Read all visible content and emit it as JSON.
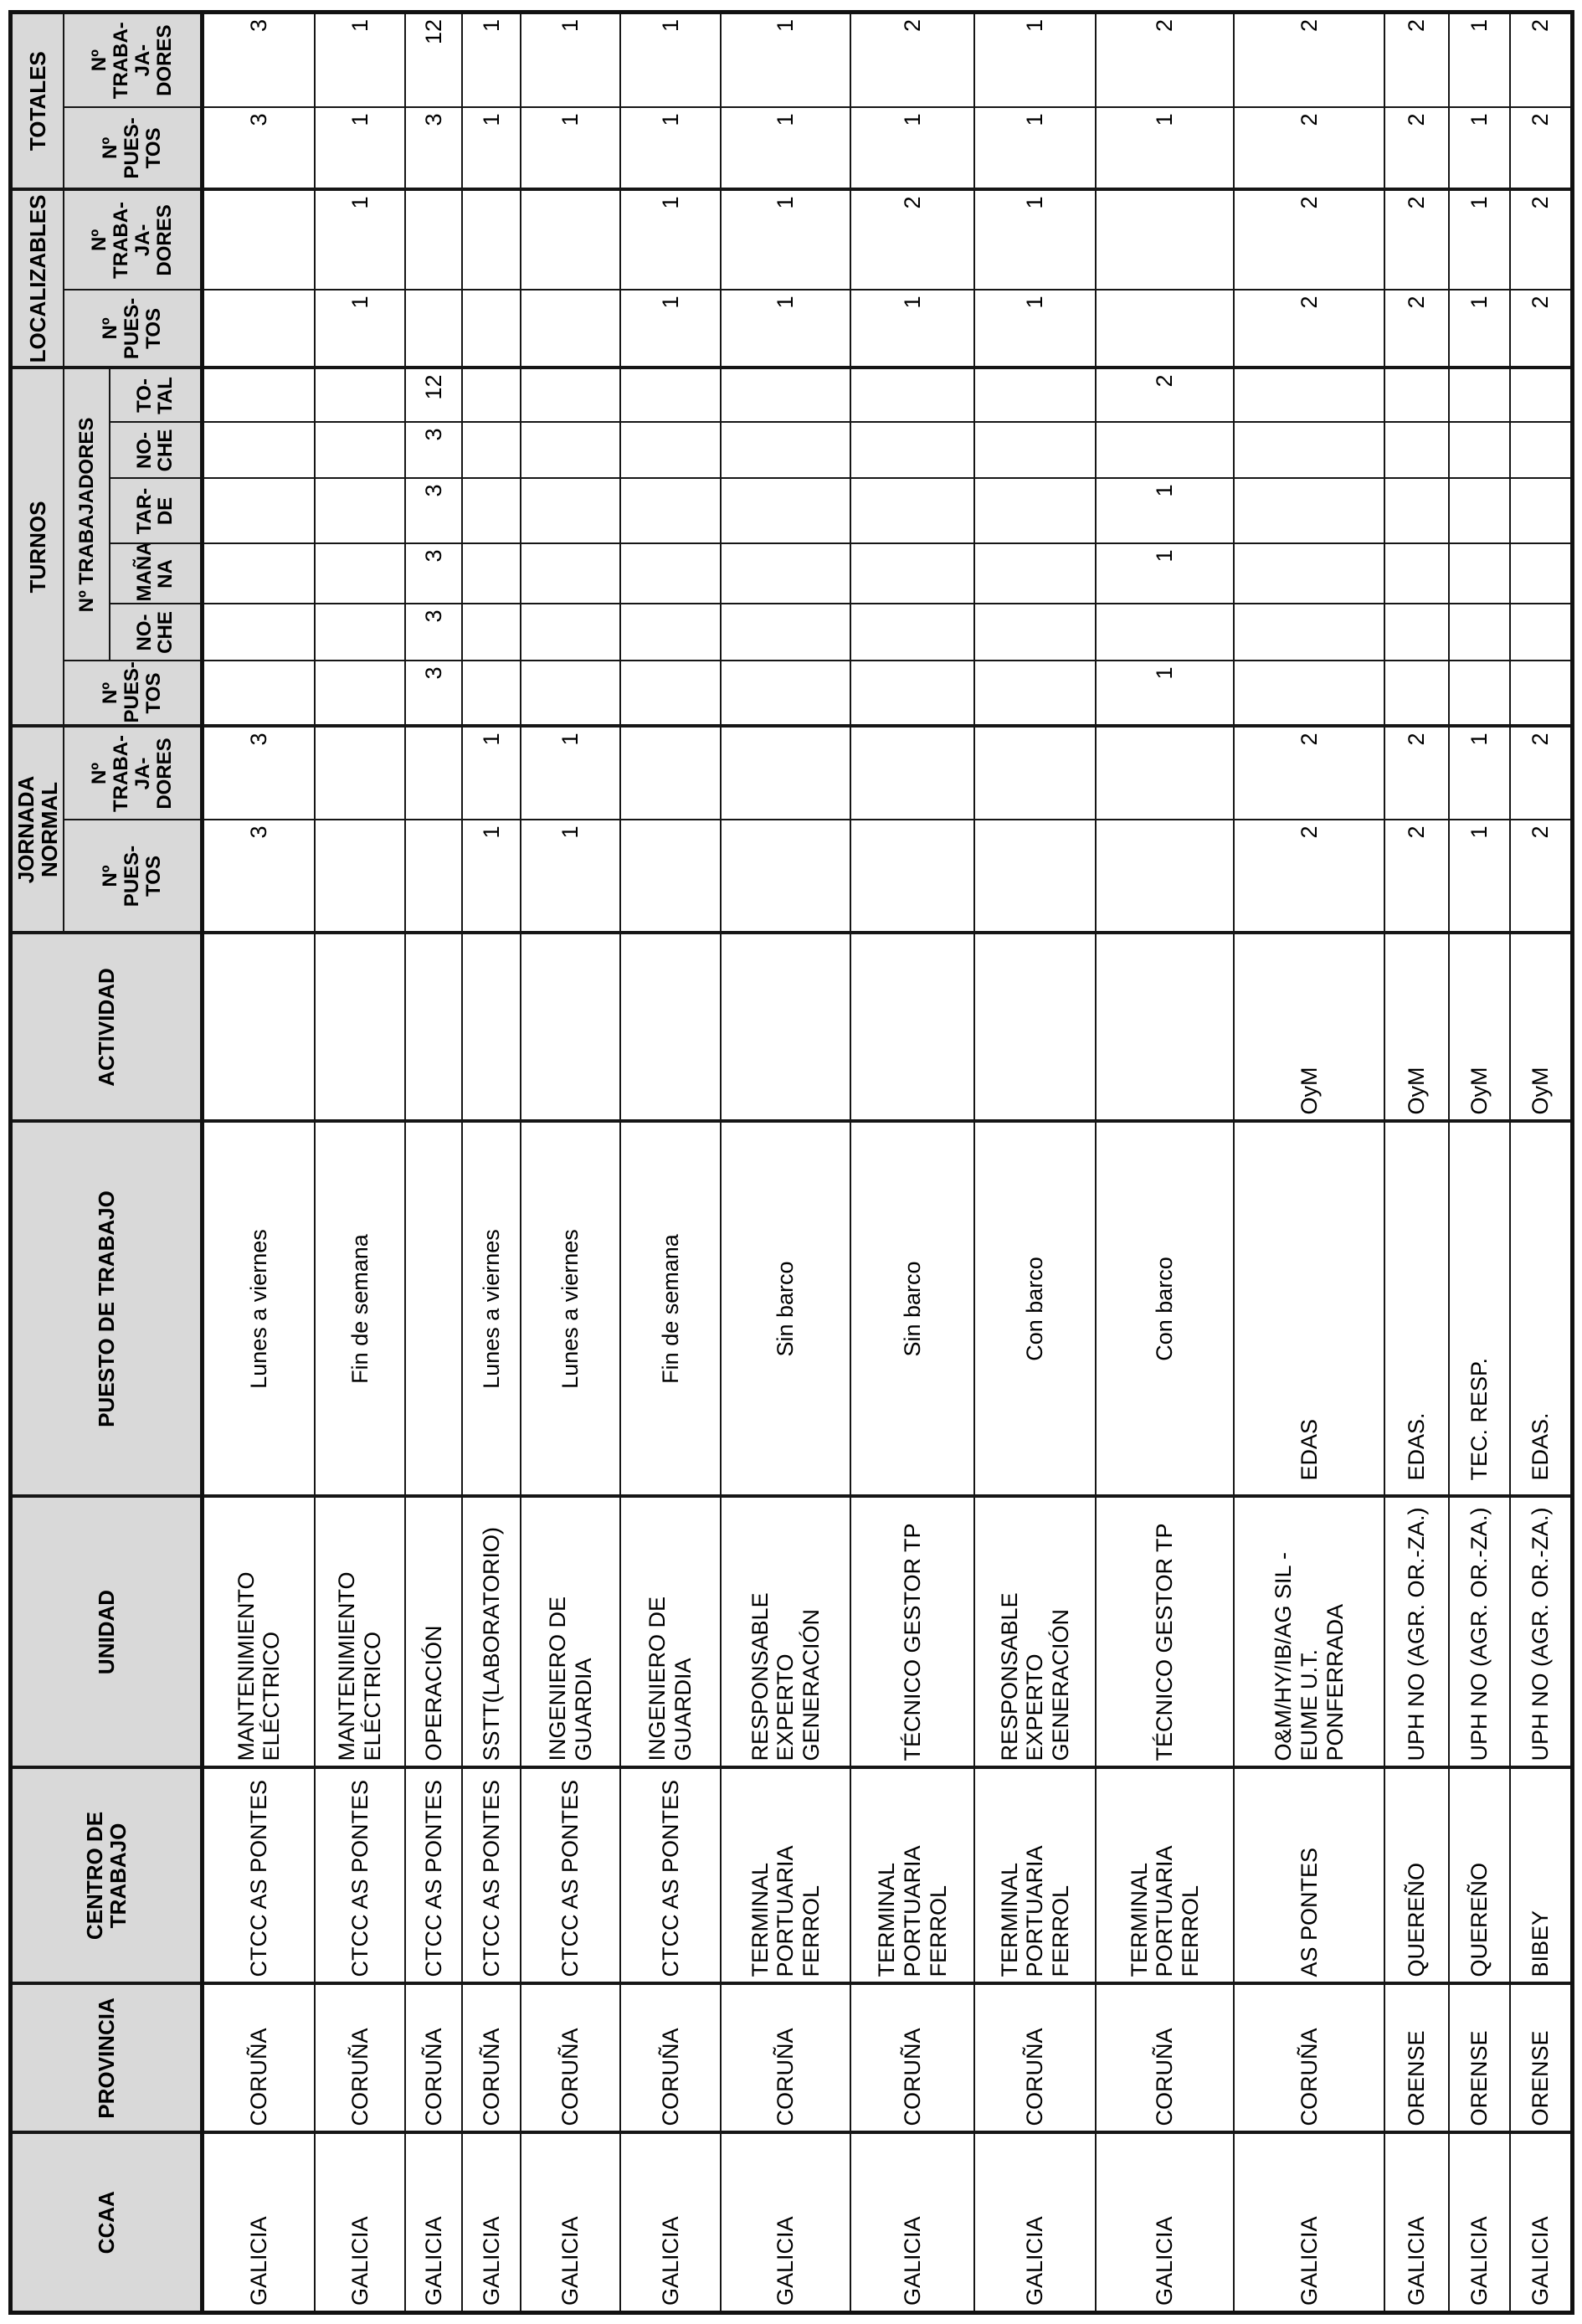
{
  "colors": {
    "header_bg": "#d9d9d9",
    "border": "#161616",
    "page_bg": "#ffffff",
    "text": "#000000"
  },
  "table": {
    "headers": {
      "ccaa": "CCAA",
      "provincia": "PROVINCIA",
      "centro": "CENTRO DE TRABAJO",
      "unidad": "UNIDAD",
      "puesto": "PUESTO DE TRABAJO",
      "actividad": "ACTIVIDAD",
      "jornada_normal": "JORNADA NORMAL",
      "turnos": "TURNOS",
      "localizables": "LOCALIZABLES",
      "totales": "TOTALES",
      "n_puestos": "Nº\nPUES-\nTOS",
      "n_trabajadores_wrapped": "Nº\nTRABA-\nJA-\nDORES",
      "n_trabajadores": "Nº TRABAJADORES",
      "noche": "NO-\nCHE",
      "manana": "MAÑA-\nNA",
      "tarde": "TAR-\nDE",
      "total": "TO-\nTAL"
    },
    "rows": [
      {
        "ccaa": "GALICIA",
        "provincia": "CORUÑA",
        "centro": "CTCC AS PONTES",
        "unidad": "MANTENIMIENTO\nELÉCTRICO",
        "puesto": "Lunes a viernes",
        "actividad": "",
        "jn_puestos": "3",
        "jn_trabajadores": "3",
        "tur_puestos": "",
        "tur_noche1": "",
        "tur_manana": "",
        "tur_tarde": "",
        "tur_noche2": "",
        "tur_total": "",
        "loc_puestos": "",
        "loc_trabajadores": "",
        "tot_puestos": "3",
        "tot_trabajadores": "3"
      },
      {
        "ccaa": "GALICIA",
        "provincia": "CORUÑA",
        "centro": "CTCC AS PONTES",
        "unidad": "MANTENIMIENTO\nELÉCTRICO",
        "puesto": "Fin de semana",
        "actividad": "",
        "jn_puestos": "",
        "jn_trabajadores": "",
        "tur_puestos": "",
        "tur_noche1": "",
        "tur_manana": "",
        "tur_tarde": "",
        "tur_noche2": "",
        "tur_total": "",
        "loc_puestos": "1",
        "loc_trabajadores": "1",
        "tot_puestos": "1",
        "tot_trabajadores": "1"
      },
      {
        "ccaa": "GALICIA",
        "provincia": "CORUÑA",
        "centro": "CTCC AS PONTES",
        "unidad": "OPERACIÓN",
        "puesto": "",
        "actividad": "",
        "jn_puestos": "",
        "jn_trabajadores": "",
        "tur_puestos": "3",
        "tur_noche1": "3",
        "tur_manana": "3",
        "tur_tarde": "3",
        "tur_noche2": "3",
        "tur_total": "12",
        "loc_puestos": "",
        "loc_trabajadores": "",
        "tot_puestos": "3",
        "tot_trabajadores": "12"
      },
      {
        "ccaa": "GALICIA",
        "provincia": "CORUÑA",
        "centro": "CTCC AS PONTES",
        "unidad": "SSTT(LABORATORIO)",
        "puesto": "Lunes a viernes",
        "actividad": "",
        "jn_puestos": "1",
        "jn_trabajadores": "1",
        "tur_puestos": "",
        "tur_noche1": "",
        "tur_manana": "",
        "tur_tarde": "",
        "tur_noche2": "",
        "tur_total": "",
        "loc_puestos": "",
        "loc_trabajadores": "",
        "tot_puestos": "1",
        "tot_trabajadores": "1"
      },
      {
        "ccaa": "GALICIA",
        "provincia": "CORUÑA",
        "centro": "CTCC AS PONTES",
        "unidad": "INGENIERO DE\nGUARDIA",
        "puesto": "Lunes a viernes",
        "actividad": "",
        "jn_puestos": "1",
        "jn_trabajadores": "1",
        "tur_puestos": "",
        "tur_noche1": "",
        "tur_manana": "",
        "tur_tarde": "",
        "tur_noche2": "",
        "tur_total": "",
        "loc_puestos": "",
        "loc_trabajadores": "",
        "tot_puestos": "1",
        "tot_trabajadores": "1"
      },
      {
        "ccaa": "GALICIA",
        "provincia": "CORUÑA",
        "centro": "CTCC AS PONTES",
        "unidad": "INGENIERO DE\nGUARDIA",
        "puesto": "Fin de semana",
        "actividad": "",
        "jn_puestos": "",
        "jn_trabajadores": "",
        "tur_puestos": "",
        "tur_noche1": "",
        "tur_manana": "",
        "tur_tarde": "",
        "tur_noche2": "",
        "tur_total": "",
        "loc_puestos": "1",
        "loc_trabajadores": "1",
        "tot_puestos": "1",
        "tot_trabajadores": "1"
      },
      {
        "ccaa": "GALICIA",
        "provincia": "CORUÑA",
        "centro": "TERMINAL\nPORTUARIA\nFERROL",
        "unidad": "RESPONSABLE\nEXPERTO GENERACIÓN",
        "puesto": "Sin barco",
        "actividad": "",
        "jn_puestos": "",
        "jn_trabajadores": "",
        "tur_puestos": "",
        "tur_noche1": "",
        "tur_manana": "",
        "tur_tarde": "",
        "tur_noche2": "",
        "tur_total": "",
        "loc_puestos": "1",
        "loc_trabajadores": "1",
        "tot_puestos": "1",
        "tot_trabajadores": "1"
      },
      {
        "ccaa": "GALICIA",
        "provincia": "CORUÑA",
        "centro": "TERMINAL\nPORTUARIA\nFERROL",
        "unidad": "TÉCNICO GESTOR TP",
        "puesto": "Sin barco",
        "actividad": "",
        "jn_puestos": "",
        "jn_trabajadores": "",
        "tur_puestos": "",
        "tur_noche1": "",
        "tur_manana": "",
        "tur_tarde": "",
        "tur_noche2": "",
        "tur_total": "",
        "loc_puestos": "1",
        "loc_trabajadores": "2",
        "tot_puestos": "1",
        "tot_trabajadores": "2"
      },
      {
        "ccaa": "GALICIA",
        "provincia": "CORUÑA",
        "centro": "TERMINAL\nPORTUARIA\nFERROL",
        "unidad": "RESPONSABLE\nEXPERTO GENERACIÓN",
        "puesto": "Con barco",
        "actividad": "",
        "jn_puestos": "",
        "jn_trabajadores": "",
        "tur_puestos": "",
        "tur_noche1": "",
        "tur_manana": "",
        "tur_tarde": "",
        "tur_noche2": "",
        "tur_total": "",
        "loc_puestos": "1",
        "loc_trabajadores": "1",
        "tot_puestos": "1",
        "tot_trabajadores": "1"
      },
      {
        "ccaa": "GALICIA",
        "provincia": "CORUÑA",
        "centro": "TERMINAL\nPORTUARIA\nFERROL",
        "unidad": "TÉCNICO GESTOR TP",
        "puesto": "Con barco",
        "actividad": "",
        "jn_puestos": "",
        "jn_trabajadores": "",
        "tur_puestos": "1",
        "tur_noche1": "",
        "tur_manana": "1",
        "tur_tarde": "1",
        "tur_noche2": "",
        "tur_total": "2",
        "loc_puestos": "",
        "loc_trabajadores": "",
        "tot_puestos": "1",
        "tot_trabajadores": "2"
      },
      {
        "ccaa": "GALICIA",
        "provincia": "CORUÑA",
        "centro": "AS PONTES",
        "unidad": "O&M/HY/IB/AG SIL -\nEUME U.T.\nPONFERRADA",
        "puesto": "EDAS",
        "actividad": "OyM",
        "jn_puestos": "2",
        "jn_trabajadores": "2",
        "tur_puestos": "",
        "tur_noche1": "",
        "tur_manana": "",
        "tur_tarde": "",
        "tur_noche2": "",
        "tur_total": "",
        "loc_puestos": "2",
        "loc_trabajadores": "2",
        "tot_puestos": "2",
        "tot_trabajadores": "2"
      },
      {
        "ccaa": "GALICIA",
        "provincia": "ORENSE",
        "centro": "QUEREÑO",
        "unidad": "UPH NO (AGR. OR.-ZA.)",
        "puesto": "EDAS.",
        "actividad": "OyM",
        "jn_puestos": "2",
        "jn_trabajadores": "2",
        "tur_puestos": "",
        "tur_noche1": "",
        "tur_manana": "",
        "tur_tarde": "",
        "tur_noche2": "",
        "tur_total": "",
        "loc_puestos": "2",
        "loc_trabajadores": "2",
        "tot_puestos": "2",
        "tot_trabajadores": "2"
      },
      {
        "ccaa": "GALICIA",
        "provincia": "ORENSE",
        "centro": "QUEREÑO",
        "unidad": "UPH NO (AGR. OR.-ZA.)",
        "puesto": "TEC. RESP.",
        "actividad": "OyM",
        "jn_puestos": "1",
        "jn_trabajadores": "1",
        "tur_puestos": "",
        "tur_noche1": "",
        "tur_manana": "",
        "tur_tarde": "",
        "tur_noche2": "",
        "tur_total": "",
        "loc_puestos": "1",
        "loc_trabajadores": "1",
        "tot_puestos": "1",
        "tot_trabajadores": "1"
      },
      {
        "ccaa": "GALICIA",
        "provincia": "ORENSE",
        "centro": "BIBEY",
        "unidad": "UPH NO (AGR. OR.-ZA.)",
        "puesto": "EDAS.",
        "actividad": "OyM",
        "jn_puestos": "2",
        "jn_trabajadores": "2",
        "tur_puestos": "",
        "tur_noche1": "",
        "tur_manana": "",
        "tur_tarde": "",
        "tur_noche2": "",
        "tur_total": "",
        "loc_puestos": "2",
        "loc_trabajadores": "2",
        "tot_puestos": "2",
        "tot_trabajadores": "2"
      }
    ]
  }
}
